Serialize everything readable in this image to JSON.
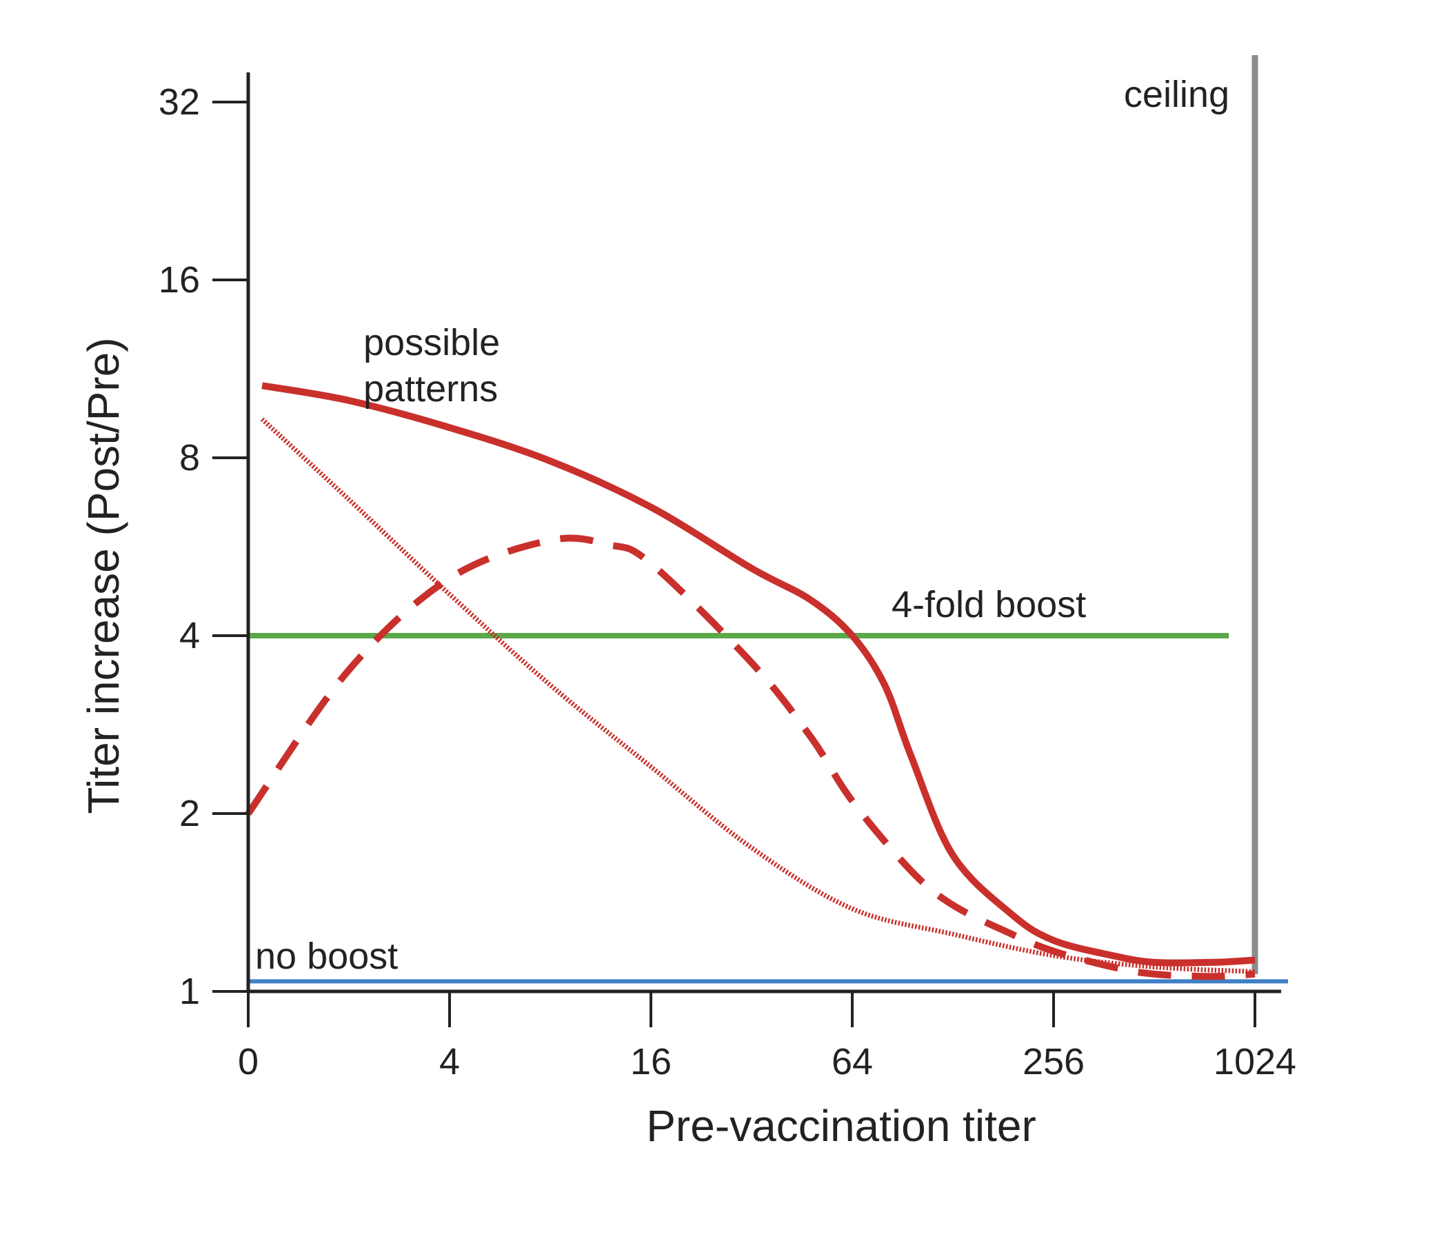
{
  "chart_data": {
    "type": "line",
    "title": "",
    "xlabel": "Pre-vaccination titer",
    "ylabel": "Titer increase (Post/Pre)",
    "x_scale": "log2",
    "y_scale": "log2",
    "x_ticks": [
      {
        "value": 1,
        "label": "0"
      },
      {
        "value": 4,
        "label": "4"
      },
      {
        "value": 16,
        "label": "16"
      },
      {
        "value": 64,
        "label": "64"
      },
      {
        "value": 256,
        "label": "256"
      },
      {
        "value": 1024,
        "label": "1024"
      }
    ],
    "y_ticks": [
      {
        "value": 1,
        "label": "1"
      },
      {
        "value": 2,
        "label": "2"
      },
      {
        "value": 4,
        "label": "4"
      },
      {
        "value": 8,
        "label": "8"
      },
      {
        "value": 16,
        "label": "16"
      },
      {
        "value": 32,
        "label": "32"
      }
    ],
    "xlim": [
      1,
      1024
    ],
    "ylim": [
      1,
      32
    ],
    "grid": false,
    "series": [
      {
        "style": "solid",
        "color": "#c9302c",
        "x": [
          1.1,
          2,
          4,
          8,
          16,
          32,
          48,
          64,
          80,
          96,
          128,
          192,
          256,
          384,
          512,
          768,
          1024
        ],
        "y": [
          10.6,
          10,
          9,
          7.9,
          6.6,
          5.2,
          4.6,
          4.0,
          3.3,
          2.5,
          1.7,
          1.35,
          1.22,
          1.15,
          1.12,
          1.12,
          1.13
        ]
      },
      {
        "style": "dashed",
        "color": "#c9302c",
        "x": [
          1,
          2,
          4,
          8,
          12,
          16,
          32,
          48,
          64,
          96,
          128,
          192,
          256,
          384,
          512,
          768,
          1024
        ],
        "y": [
          2.0,
          3.5,
          5.0,
          5.8,
          5.7,
          5.3,
          3.6,
          2.7,
          2.1,
          1.6,
          1.4,
          1.25,
          1.17,
          1.1,
          1.07,
          1.06,
          1.07
        ]
      },
      {
        "style": "dotted",
        "color": "#c9302c",
        "x": [
          1.1,
          2,
          4,
          8,
          16,
          32,
          64,
          128,
          256,
          512,
          1024
        ],
        "y": [
          9.3,
          6.8,
          4.7,
          3.3,
          2.4,
          1.75,
          1.38,
          1.25,
          1.15,
          1.1,
          1.08
        ]
      }
    ],
    "reference_lines": [
      {
        "orientation": "horizontal",
        "y": 4,
        "label": "4-fold boost",
        "color": "#5aa84a"
      },
      {
        "orientation": "horizontal",
        "y": 1.04,
        "label": "no boost",
        "color": "#3f7fc6"
      },
      {
        "orientation": "vertical",
        "x": 1024,
        "label": "ceiling",
        "color": "#8a8d90"
      }
    ],
    "annotations": [
      {
        "text_lines": [
          "possible",
          "patterns"
        ]
      }
    ]
  }
}
